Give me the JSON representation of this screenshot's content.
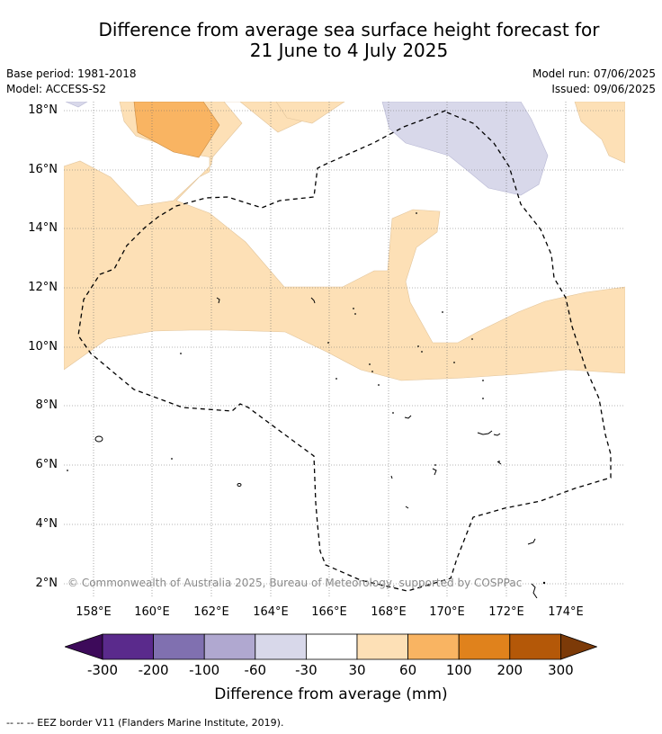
{
  "title_line1": "Difference from average sea surface height forecast for",
  "title_line2": "21 June to 4 July 2025",
  "base_period": "Base period: 1981-2018",
  "model": "Model: ACCESS-S2",
  "model_run": "Model run: 07/06/2025",
  "issued": "Issued: 09/06/2025",
  "lat_labels": [
    "18°N",
    "16°N",
    "14°N",
    "12°N",
    "10°N",
    "8°N",
    "6°N",
    "4°N",
    "2°N"
  ],
  "lon_labels": [
    "158°E",
    "160°E",
    "162°E",
    "164°E",
    "166°E",
    "168°E",
    "170°E",
    "172°E",
    "174°E"
  ],
  "watermark": "© Commonwealth of Australia 2025, Bureau of Meteorology, supported by COSPPac",
  "colorbar": {
    "ticks": [
      "-300",
      "-200",
      "-100",
      "-60",
      "-30",
      "30",
      "60",
      "100",
      "200",
      "300"
    ],
    "colors": [
      "#3d0a5a",
      "#5a2a8c",
      "#8070b0",
      "#b0a8d0",
      "#d8d8ea",
      "#ffffff",
      "#fde0b6",
      "#f9b462",
      "#e0821c",
      "#b45808",
      "#7c3a08"
    ],
    "label": "Difference from average (mm)"
  },
  "footnote": "-- -- -- EEZ border V11 (Flanders Marine Institute, 2019)."
}
